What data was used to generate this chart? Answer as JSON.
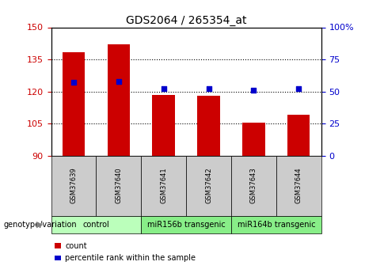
{
  "title": "GDS2064 / 265354_at",
  "samples": [
    "GSM37639",
    "GSM37640",
    "GSM37641",
    "GSM37642",
    "GSM37643",
    "GSM37644"
  ],
  "count_values": [
    138.5,
    142.0,
    118.5,
    118.0,
    105.5,
    109.0
  ],
  "percentile_values": [
    57,
    58,
    52,
    52,
    51,
    52
  ],
  "ylim_left": [
    90,
    150
  ],
  "ylim_right": [
    0,
    100
  ],
  "yticks_left": [
    90,
    105,
    120,
    135,
    150
  ],
  "yticks_right": [
    0,
    25,
    50,
    75,
    100
  ],
  "ytick_labels_right": [
    "0",
    "25",
    "50",
    "75",
    "100%"
  ],
  "bar_color": "#cc0000",
  "dot_color": "#0000cc",
  "bar_bottom": 90,
  "group_defs": [
    {
      "label": "control",
      "start": 0,
      "end": 1,
      "color": "#bbffbb"
    },
    {
      "label": "miR156b transgenic",
      "start": 2,
      "end": 3,
      "color": "#88ee88"
    },
    {
      "label": "miR164b transgenic",
      "start": 4,
      "end": 5,
      "color": "#88ee88"
    }
  ],
  "left_tick_color": "#cc0000",
  "right_tick_color": "#0000cc",
  "grid_ticks": [
    105,
    120,
    135
  ],
  "background_color": "#ffffff",
  "sample_box_color": "#cccccc",
  "geno_label": "genotype/variation",
  "legend_count_label": "count",
  "legend_pct_label": "percentile rank within the sample"
}
